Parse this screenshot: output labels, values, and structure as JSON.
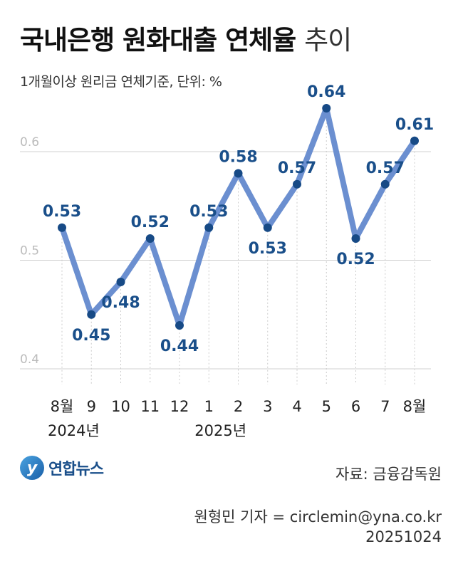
{
  "title_main": "국내은행 원화대출 연체율",
  "title_light": "추이",
  "subtitle": "1개월이상 원리금 연체기준, 단위: %",
  "logo_text": "연합뉴스",
  "source": "자료: 금융감독원",
  "credit_line1": "원형민 기자 = circlemin@yna.co.kr",
  "credit_line2": "20251024",
  "colors": {
    "line": "#6b8fd0",
    "marker": "#174a86",
    "label": "#1a4f8a",
    "grid": "#d0d0d0"
  },
  "chart_data": {
    "type": "line",
    "categories": [
      "8월",
      "9",
      "10",
      "11",
      "12",
      "1",
      "2",
      "3",
      "4",
      "5",
      "6",
      "7",
      "8월"
    ],
    "year_labels": [
      {
        "text": "2024년",
        "index": 0
      },
      {
        "text": "2025년",
        "index": 5
      }
    ],
    "values": [
      0.53,
      0.45,
      0.48,
      0.52,
      0.44,
      0.53,
      0.58,
      0.53,
      0.57,
      0.64,
      0.52,
      0.57,
      0.61
    ],
    "label_position": [
      "above",
      "below",
      "below",
      "above",
      "below",
      "above",
      "above",
      "below",
      "above",
      "above",
      "below",
      "above",
      "above"
    ],
    "y_ticks": [
      0.4,
      0.5,
      0.6
    ],
    "ylim": [
      0.38,
      0.66
    ],
    "grid": true,
    "ylabel": "",
    "xlabel": ""
  }
}
